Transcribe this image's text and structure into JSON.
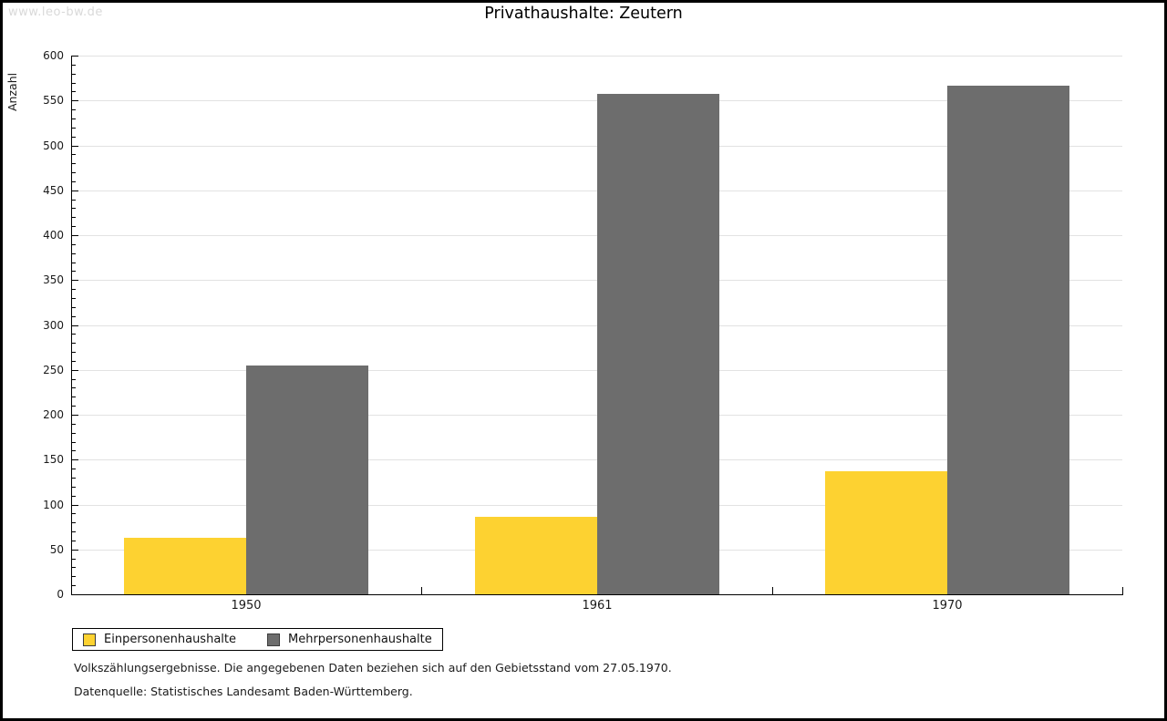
{
  "watermark": "www.leo-bw.de",
  "title": "Privathaushalte: Zeutern",
  "chart_data": {
    "type": "bar",
    "title": "Privathaushalte: Zeutern",
    "categories": [
      "1950",
      "1961",
      "1970"
    ],
    "series": [
      {
        "name": "Einpersonenhaushalte",
        "color": "#fdd231",
        "values": [
          63,
          86,
          137
        ]
      },
      {
        "name": "Mehrpersonenhaushalte",
        "color": "#6d6d6d",
        "values": [
          255,
          557,
          566
        ]
      }
    ],
    "xlabel": "",
    "ylabel": "Anzahl",
    "ylim": [
      0,
      600
    ],
    "ytick_step": 50,
    "y_minor_tick_step": 10,
    "grid": true,
    "gridline_color": "#e2e2e2",
    "legend_position": "bottom-left"
  },
  "footnotes": [
    "Volkszählungsergebnisse. Die angegebenen Daten beziehen sich auf den Gebietsstand vom 27.05.1970.",
    "Datenquelle: Statistisches Landesamt Baden-Württemberg."
  ]
}
